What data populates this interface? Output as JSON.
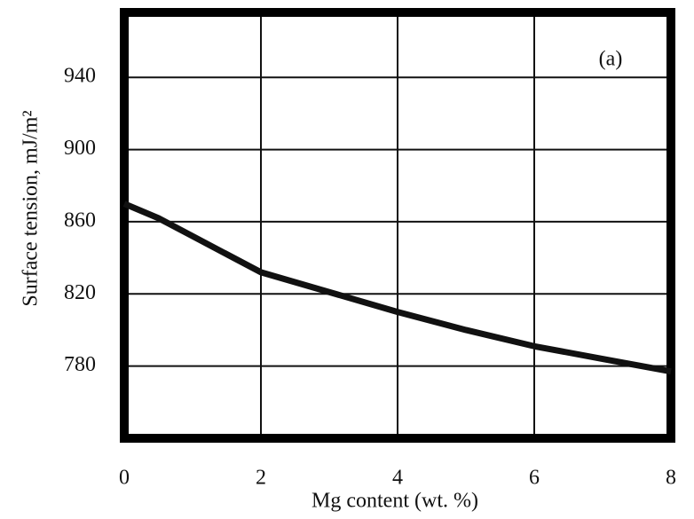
{
  "chart_data": {
    "type": "line",
    "annotation": "(a)",
    "xlabel": "Mg content (wt. %)",
    "ylabel": "Surface tension, mJ/m²",
    "x": [
      0,
      0.5,
      1,
      2,
      3,
      4,
      5,
      6,
      7,
      8
    ],
    "series": [
      {
        "color": "#111111",
        "values": [
          870,
          862,
          852,
          832,
          821,
          810,
          800,
          791,
          784,
          777
        ]
      }
    ],
    "xlim": [
      0,
      8
    ],
    "xticks": [
      0,
      2,
      4,
      6,
      8
    ],
    "ylim": [
      740,
      976
    ],
    "yticks": [
      780,
      820,
      860,
      900,
      940
    ],
    "grid": true
  }
}
